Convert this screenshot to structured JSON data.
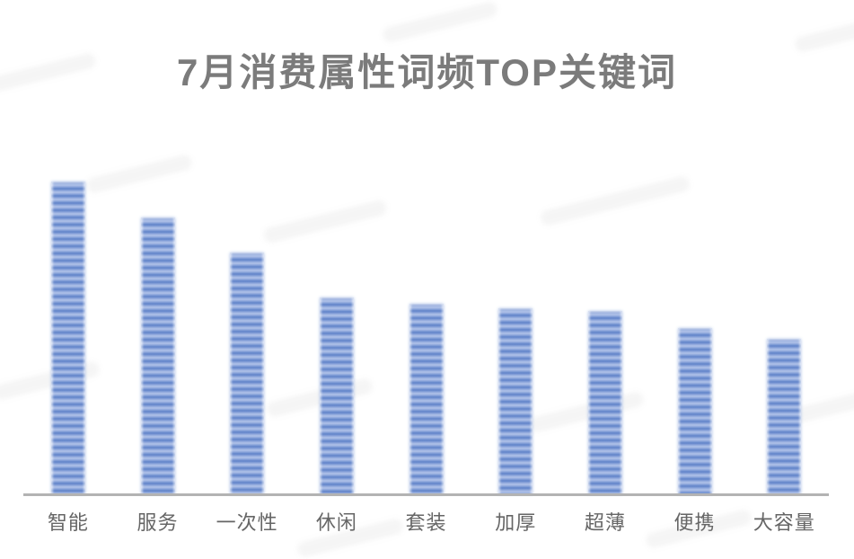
{
  "page": {
    "background": "#ffffff"
  },
  "chart": {
    "title": "7月消费属性词频TOP关键词",
    "title_color": "#7b7b7b",
    "label_color": "#666666",
    "axis_color": "#b3b3b3",
    "bar_color_dark": "#6083c9",
    "bar_color_mid": "#8aa4da",
    "bar_color_light": "#aabde6"
  },
  "chart_data": {
    "type": "bar",
    "title": "7月消费属性词频TOP关键词",
    "categories": [
      "智能",
      "服务",
      "一次性",
      "休闲",
      "套装",
      "加厚",
      "超薄",
      "便携",
      "大容量"
    ],
    "values": [
      348,
      308,
      269,
      219,
      212,
      207,
      204,
      185,
      173
    ],
    "xlabel": "",
    "ylabel": "",
    "ylim": [
      0,
      360
    ],
    "grid": false,
    "legend": false,
    "y_axis_shown": false,
    "note": "No numeric axis or data labels are visible; values are relative units estimated from bar heights."
  }
}
